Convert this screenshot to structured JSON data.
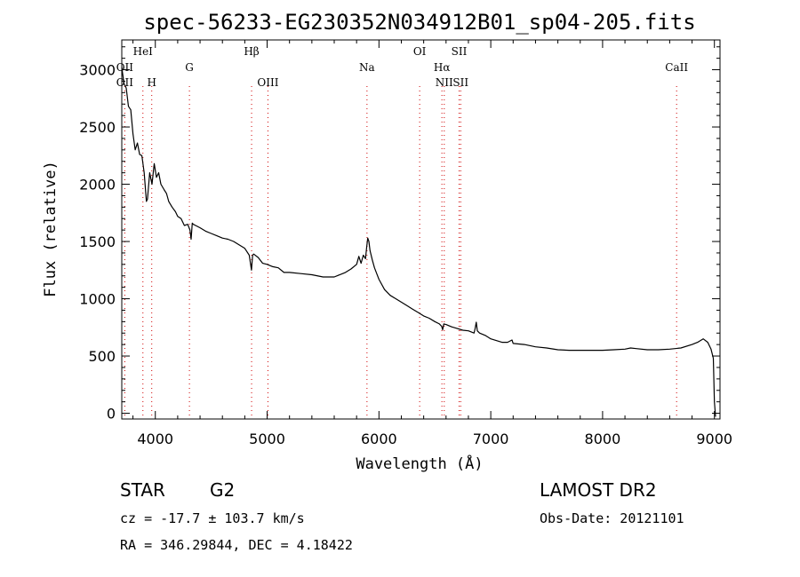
{
  "chart_data": {
    "type": "line",
    "title": "spec-56233-EG230352N034912B01_sp04-205.fits",
    "xlabel": "Wavelength (Å)",
    "ylabel": "Flux (relative)",
    "xlim": [
      3700,
      9050
    ],
    "ylim": [
      -50,
      3260
    ],
    "xticks": [
      4000,
      5000,
      6000,
      7000,
      8000,
      9000
    ],
    "yticks": [
      0,
      500,
      1000,
      1500,
      2000,
      2500,
      3000
    ],
    "grid": false,
    "series": [
      {
        "x": [
          3700,
          3720,
          3740,
          3760,
          3780,
          3800,
          3820,
          3840,
          3860,
          3880,
          3900,
          3920,
          3930,
          3950,
          3970,
          3990,
          4010,
          4030,
          4050,
          4080,
          4100,
          4120,
          4150,
          4180,
          4200,
          4230,
          4260,
          4290,
          4310,
          4320,
          4330,
          4340,
          4360,
          4400,
          4450,
          4500,
          4550,
          4600,
          4650,
          4700,
          4750,
          4800,
          4840,
          4860,
          4870,
          4880,
          4920,
          4960,
          5000,
          5050,
          5100,
          5150,
          5200,
          5300,
          5400,
          5500,
          5600,
          5700,
          5750,
          5800,
          5820,
          5840,
          5860,
          5880,
          5890,
          5900,
          5910,
          5920,
          5940,
          5960,
          5980,
          6000,
          6050,
          6100,
          6150,
          6200,
          6250,
          6300,
          6350,
          6400,
          6450,
          6500,
          6540,
          6560,
          6570,
          6580,
          6600,
          6650,
          6700,
          6750,
          6800,
          6850,
          6860,
          6870,
          6880,
          6900,
          6950,
          7000,
          7100,
          7150,
          7190,
          7200,
          7300,
          7400,
          7500,
          7600,
          7700,
          7800,
          7900,
          8000,
          8100,
          8200,
          8250,
          8300,
          8400,
          8500,
          8600,
          8700,
          8800,
          8850,
          8900,
          8940,
          8970,
          8990,
          9000,
          9010
        ],
        "y": [
          3020,
          2880,
          2840,
          2680,
          2650,
          2440,
          2300,
          2360,
          2260,
          2250,
          2100,
          1850,
          1870,
          2100,
          2000,
          2180,
          2060,
          2100,
          2000,
          1950,
          1920,
          1850,
          1800,
          1760,
          1720,
          1700,
          1640,
          1650,
          1600,
          1520,
          1660,
          1650,
          1640,
          1620,
          1590,
          1570,
          1550,
          1530,
          1520,
          1500,
          1470,
          1440,
          1380,
          1250,
          1380,
          1390,
          1360,
          1310,
          1300,
          1280,
          1270,
          1230,
          1230,
          1220,
          1210,
          1190,
          1190,
          1230,
          1260,
          1300,
          1370,
          1310,
          1380,
          1350,
          1450,
          1530,
          1500,
          1420,
          1340,
          1270,
          1220,
          1170,
          1080,
          1030,
          1000,
          970,
          940,
          910,
          880,
          850,
          830,
          800,
          780,
          760,
          730,
          780,
          775,
          755,
          740,
          725,
          720,
          700,
          740,
          795,
          720,
          700,
          680,
          650,
          620,
          620,
          640,
          610,
          600,
          580,
          570,
          555,
          550,
          550,
          550,
          550,
          555,
          560,
          570,
          565,
          555,
          555,
          560,
          570,
          600,
          620,
          650,
          620,
          560,
          480,
          100,
          -30
        ]
      }
    ],
    "lines": [
      {
        "name": "OII",
        "x": 3727,
        "row": "top"
      },
      {
        "name": "OII",
        "x": 3727,
        "row": "bottom"
      },
      {
        "name": "HeI",
        "x": 3889,
        "row": "top"
      },
      {
        "name": "H",
        "x": 3968,
        "row": "bottom"
      },
      {
        "name": "G",
        "x": 4305,
        "row": "top"
      },
      {
        "name": "Hβ",
        "x": 4861,
        "row": "top"
      },
      {
        "name": "OIII",
        "x": 5007,
        "row": "bottom"
      },
      {
        "name": "Na",
        "x": 5893,
        "row": "top"
      },
      {
        "name": "OI",
        "x": 6364,
        "row": "top"
      },
      {
        "name": "Hα",
        "x": 6563,
        "row": "top"
      },
      {
        "name": "NII",
        "x": 6584,
        "row": "bottom"
      },
      {
        "name": "SII",
        "x": 6717,
        "row": "top"
      },
      {
        "name": "SII",
        "x": 6731,
        "row": "bottom"
      },
      {
        "name": "CaII",
        "x": 8662,
        "row": "top"
      }
    ]
  },
  "info": {
    "class_label": "STAR",
    "subclass": "G2",
    "survey": "LAMOST DR2",
    "redshift": "cz = -17.7 ± 103.7 km/s",
    "obs_date": "Obs-Date: 20121101",
    "coords": "RA = 346.29844, DEC =   4.18422"
  }
}
